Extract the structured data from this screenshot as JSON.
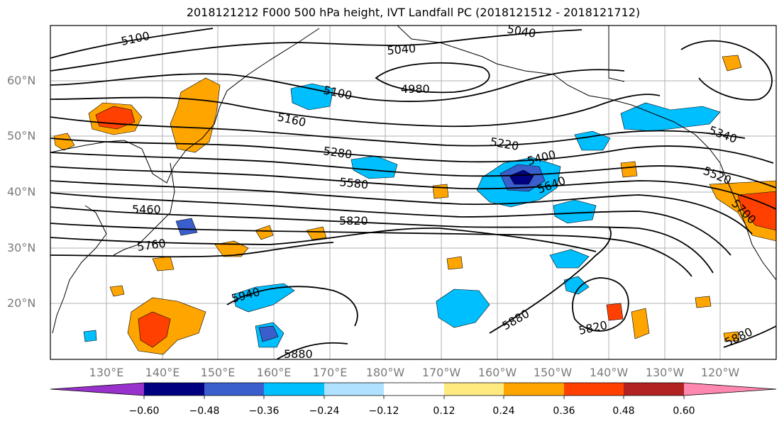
{
  "title": "2018121212 F000 500 hPa height, IVT Landfall PC (2018121512 - 2018121712)",
  "lat_labels": [
    "60°N",
    "50°N",
    "40°N",
    "30°N",
    "20°N"
  ],
  "lon_labels": [
    "130°E",
    "140°E",
    "150°E",
    "160°E",
    "170°E",
    "180°W",
    "170°W",
    "160°W",
    "150°W",
    "140°W",
    "130°W",
    "120°W"
  ],
  "contour_labels": [
    "5100",
    "5040",
    "5040",
    "4980",
    "5100",
    "5160",
    "5220",
    "5280",
    "5340",
    "5400",
    "5520",
    "5580",
    "5640",
    "5460",
    "5760",
    "5700",
    "5820",
    "5940",
    "5880",
    "5880",
    "5820",
    "5880"
  ],
  "colorbar": {
    "ticks": [
      "−0.60",
      "−0.48",
      "−0.36",
      "−0.24",
      "−0.12",
      "0.12",
      "0.24",
      "0.36",
      "0.48",
      "0.60"
    ],
    "colors": [
      "#9932cc",
      "#000080",
      "#3a5fcd",
      "#00bfff",
      "#b0e2ff",
      "#ffffff",
      "#ffea80",
      "#ffa500",
      "#ff4000",
      "#b22222",
      "#ff88b0"
    ]
  }
}
